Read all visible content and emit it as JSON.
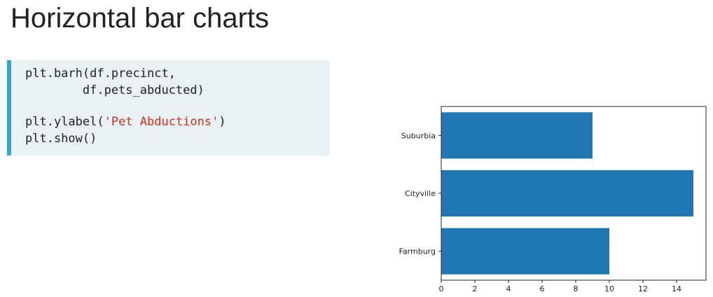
{
  "slide": {
    "title": "Horizontal bar charts"
  },
  "code": {
    "line1": "plt.barh(df.precinct,",
    "line2": "        df.pets_abducted)",
    "line4_prefix": "plt.ylabel(",
    "line4_string": "'Pet Abductions'",
    "line4_suffix": ")",
    "line5": "plt.show()"
  },
  "colors": {
    "bar": "#2077b4",
    "code_bg": "#e8f1f4",
    "code_accent": "#30a6d1",
    "string": "#d4301c"
  },
  "chart_data": {
    "type": "bar",
    "orientation": "horizontal",
    "categories": [
      "Farmburg",
      "Cityville",
      "Suburbia"
    ],
    "values": [
      10,
      15,
      9
    ],
    "xticks": [
      0,
      2,
      4,
      6,
      8,
      10,
      12,
      14
    ],
    "xlim": [
      0,
      15.75
    ],
    "title": "",
    "xlabel": "",
    "ylabel": "",
    "grid": false
  }
}
